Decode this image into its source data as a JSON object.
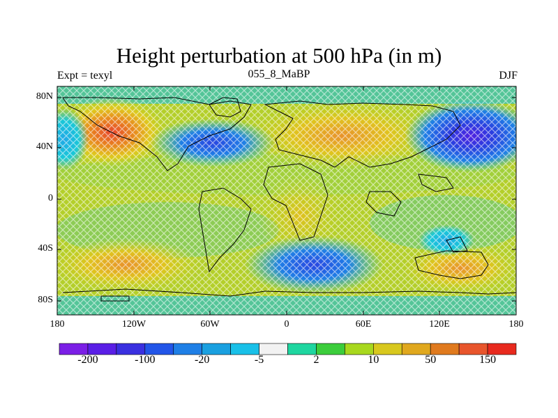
{
  "title": "Height perturbation at 500 hPa (in m)",
  "subtitle_left": "Expt = texyl",
  "subtitle_center": "055_8_MaBP",
  "subtitle_right": "DJF",
  "lat_labels": [
    "80N",
    "40N",
    "0",
    "40S",
    "80S"
  ],
  "lon_labels": [
    "180",
    "120W",
    "60W",
    "0",
    "60E",
    "120E",
    "180"
  ],
  "colorbar": {
    "labels": [
      "-200",
      "-100",
      "-20",
      "-5",
      "2",
      "10",
      "50",
      "150"
    ],
    "colors": [
      "#7b1fe6",
      "#5a1fe6",
      "#3a30e0",
      "#2255e8",
      "#1f7fe6",
      "#1aa0e0",
      "#19c0e8",
      "#f2f2f2",
      "#1fd6a0",
      "#3ccd3c",
      "#a8d81e",
      "#d8c81e",
      "#e0a81e",
      "#e07a1e",
      "#e8552c",
      "#e82a1e"
    ]
  },
  "colors": {
    "land_outline": "#000000",
    "background_field": "#b8d020"
  }
}
